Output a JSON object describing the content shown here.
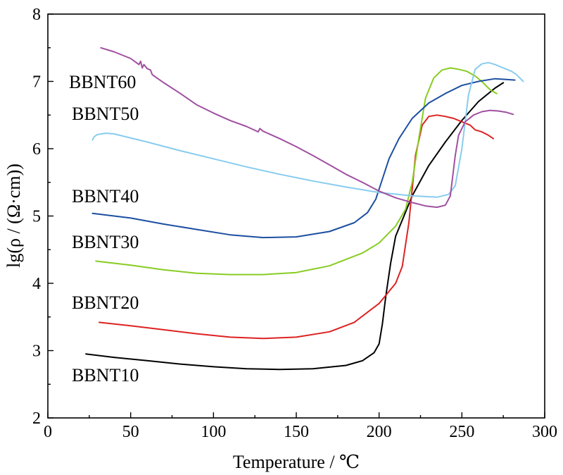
{
  "chart_data": {
    "type": "line",
    "xlabel": "Temperature / ℃",
    "ylabel": "lg(ρ / (Ω·cm))",
    "xlim": [
      0,
      300
    ],
    "ylim": [
      2,
      8
    ],
    "xticks": [
      "0",
      "50",
      "100",
      "150",
      "200",
      "250",
      "300"
    ],
    "yticks": [
      "2",
      "3",
      "4",
      "5",
      "6",
      "7",
      "8"
    ],
    "grid": false,
    "legend": "inline labels at left",
    "series": [
      {
        "name": "BBNT10",
        "color": "#000000",
        "x": [
          23,
          40,
          60,
          80,
          100,
          120,
          140,
          160,
          180,
          190,
          197,
          200,
          202,
          204,
          207,
          210,
          215,
          220,
          230,
          240,
          250,
          260,
          270,
          275
        ],
        "y": [
          2.95,
          2.9,
          2.85,
          2.8,
          2.76,
          2.73,
          2.72,
          2.73,
          2.78,
          2.85,
          2.97,
          3.1,
          3.4,
          3.8,
          4.3,
          4.7,
          5.0,
          5.3,
          5.75,
          6.1,
          6.42,
          6.7,
          6.9,
          6.98
        ]
      },
      {
        "name": "BBNT20",
        "color": "#dd2222",
        "x": [
          31,
          50,
          70,
          90,
          110,
          130,
          150,
          170,
          185,
          200,
          210,
          214,
          218,
          222,
          226,
          230,
          235,
          240,
          245,
          250,
          255,
          258,
          262,
          266,
          269
        ],
        "y": [
          3.42,
          3.37,
          3.31,
          3.25,
          3.2,
          3.18,
          3.2,
          3.28,
          3.42,
          3.7,
          4.0,
          4.25,
          4.9,
          5.9,
          6.35,
          6.48,
          6.5,
          6.48,
          6.45,
          6.4,
          6.35,
          6.28,
          6.25,
          6.2,
          6.15
        ]
      },
      {
        "name": "BBNT30",
        "color": "#88cc22",
        "x": [
          29,
          50,
          70,
          90,
          110,
          130,
          150,
          170,
          190,
          200,
          210,
          216,
          220,
          224,
          228,
          233,
          238,
          243,
          248,
          253,
          258,
          262,
          264,
          266,
          268,
          271
        ],
        "y": [
          4.33,
          4.27,
          4.2,
          4.15,
          4.13,
          4.13,
          4.16,
          4.26,
          4.45,
          4.6,
          4.85,
          5.1,
          5.5,
          6.15,
          6.75,
          7.05,
          7.17,
          7.2,
          7.18,
          7.15,
          7.08,
          7.0,
          6.95,
          6.9,
          6.86,
          6.82
        ]
      },
      {
        "name": "BBNT40",
        "color": "#1c4fa0",
        "x": [
          27,
          50,
          70,
          90,
          110,
          130,
          150,
          170,
          185,
          193,
          198,
          202,
          206,
          212,
          220,
          230,
          240,
          250,
          260,
          270,
          276,
          282
        ],
        "y": [
          5.04,
          4.97,
          4.88,
          4.8,
          4.72,
          4.68,
          4.69,
          4.77,
          4.9,
          5.05,
          5.25,
          5.55,
          5.85,
          6.15,
          6.45,
          6.68,
          6.82,
          6.94,
          7.0,
          7.04,
          7.03,
          7.02
        ]
      },
      {
        "name": "BBNT50",
        "color": "#88ccee",
        "x": [
          27,
          28,
          30,
          35,
          40,
          60,
          80,
          100,
          120,
          140,
          160,
          180,
          200,
          220,
          235,
          242,
          246,
          250,
          254,
          258,
          262,
          266,
          270,
          275,
          280,
          283,
          287
        ],
        "y": [
          6.13,
          6.18,
          6.21,
          6.23,
          6.22,
          6.1,
          5.97,
          5.85,
          5.73,
          5.62,
          5.52,
          5.43,
          5.35,
          5.3,
          5.28,
          5.32,
          5.45,
          6.0,
          6.8,
          7.18,
          7.26,
          7.28,
          7.25,
          7.2,
          7.15,
          7.1,
          7.0
        ]
      },
      {
        "name": "BBNT60",
        "color": "#a050a0",
        "x": [
          32,
          40,
          50,
          55,
          56,
          57,
          58,
          60,
          62,
          63,
          70,
          80,
          90,
          100,
          110,
          120,
          127,
          128,
          130,
          140,
          150,
          160,
          170,
          180,
          190,
          200,
          210,
          220,
          228,
          235,
          240,
          243,
          246,
          248,
          252,
          257,
          262,
          267,
          272,
          277,
          281
        ],
        "y": [
          7.5,
          7.44,
          7.34,
          7.25,
          7.3,
          7.2,
          7.25,
          7.19,
          7.17,
          7.1,
          6.98,
          6.82,
          6.65,
          6.53,
          6.42,
          6.33,
          6.25,
          6.3,
          6.26,
          6.15,
          6.03,
          5.9,
          5.76,
          5.62,
          5.5,
          5.37,
          5.27,
          5.2,
          5.15,
          5.13,
          5.16,
          5.3,
          5.9,
          6.2,
          6.4,
          6.5,
          6.55,
          6.57,
          6.56,
          6.54,
          6.51
        ]
      }
    ]
  }
}
